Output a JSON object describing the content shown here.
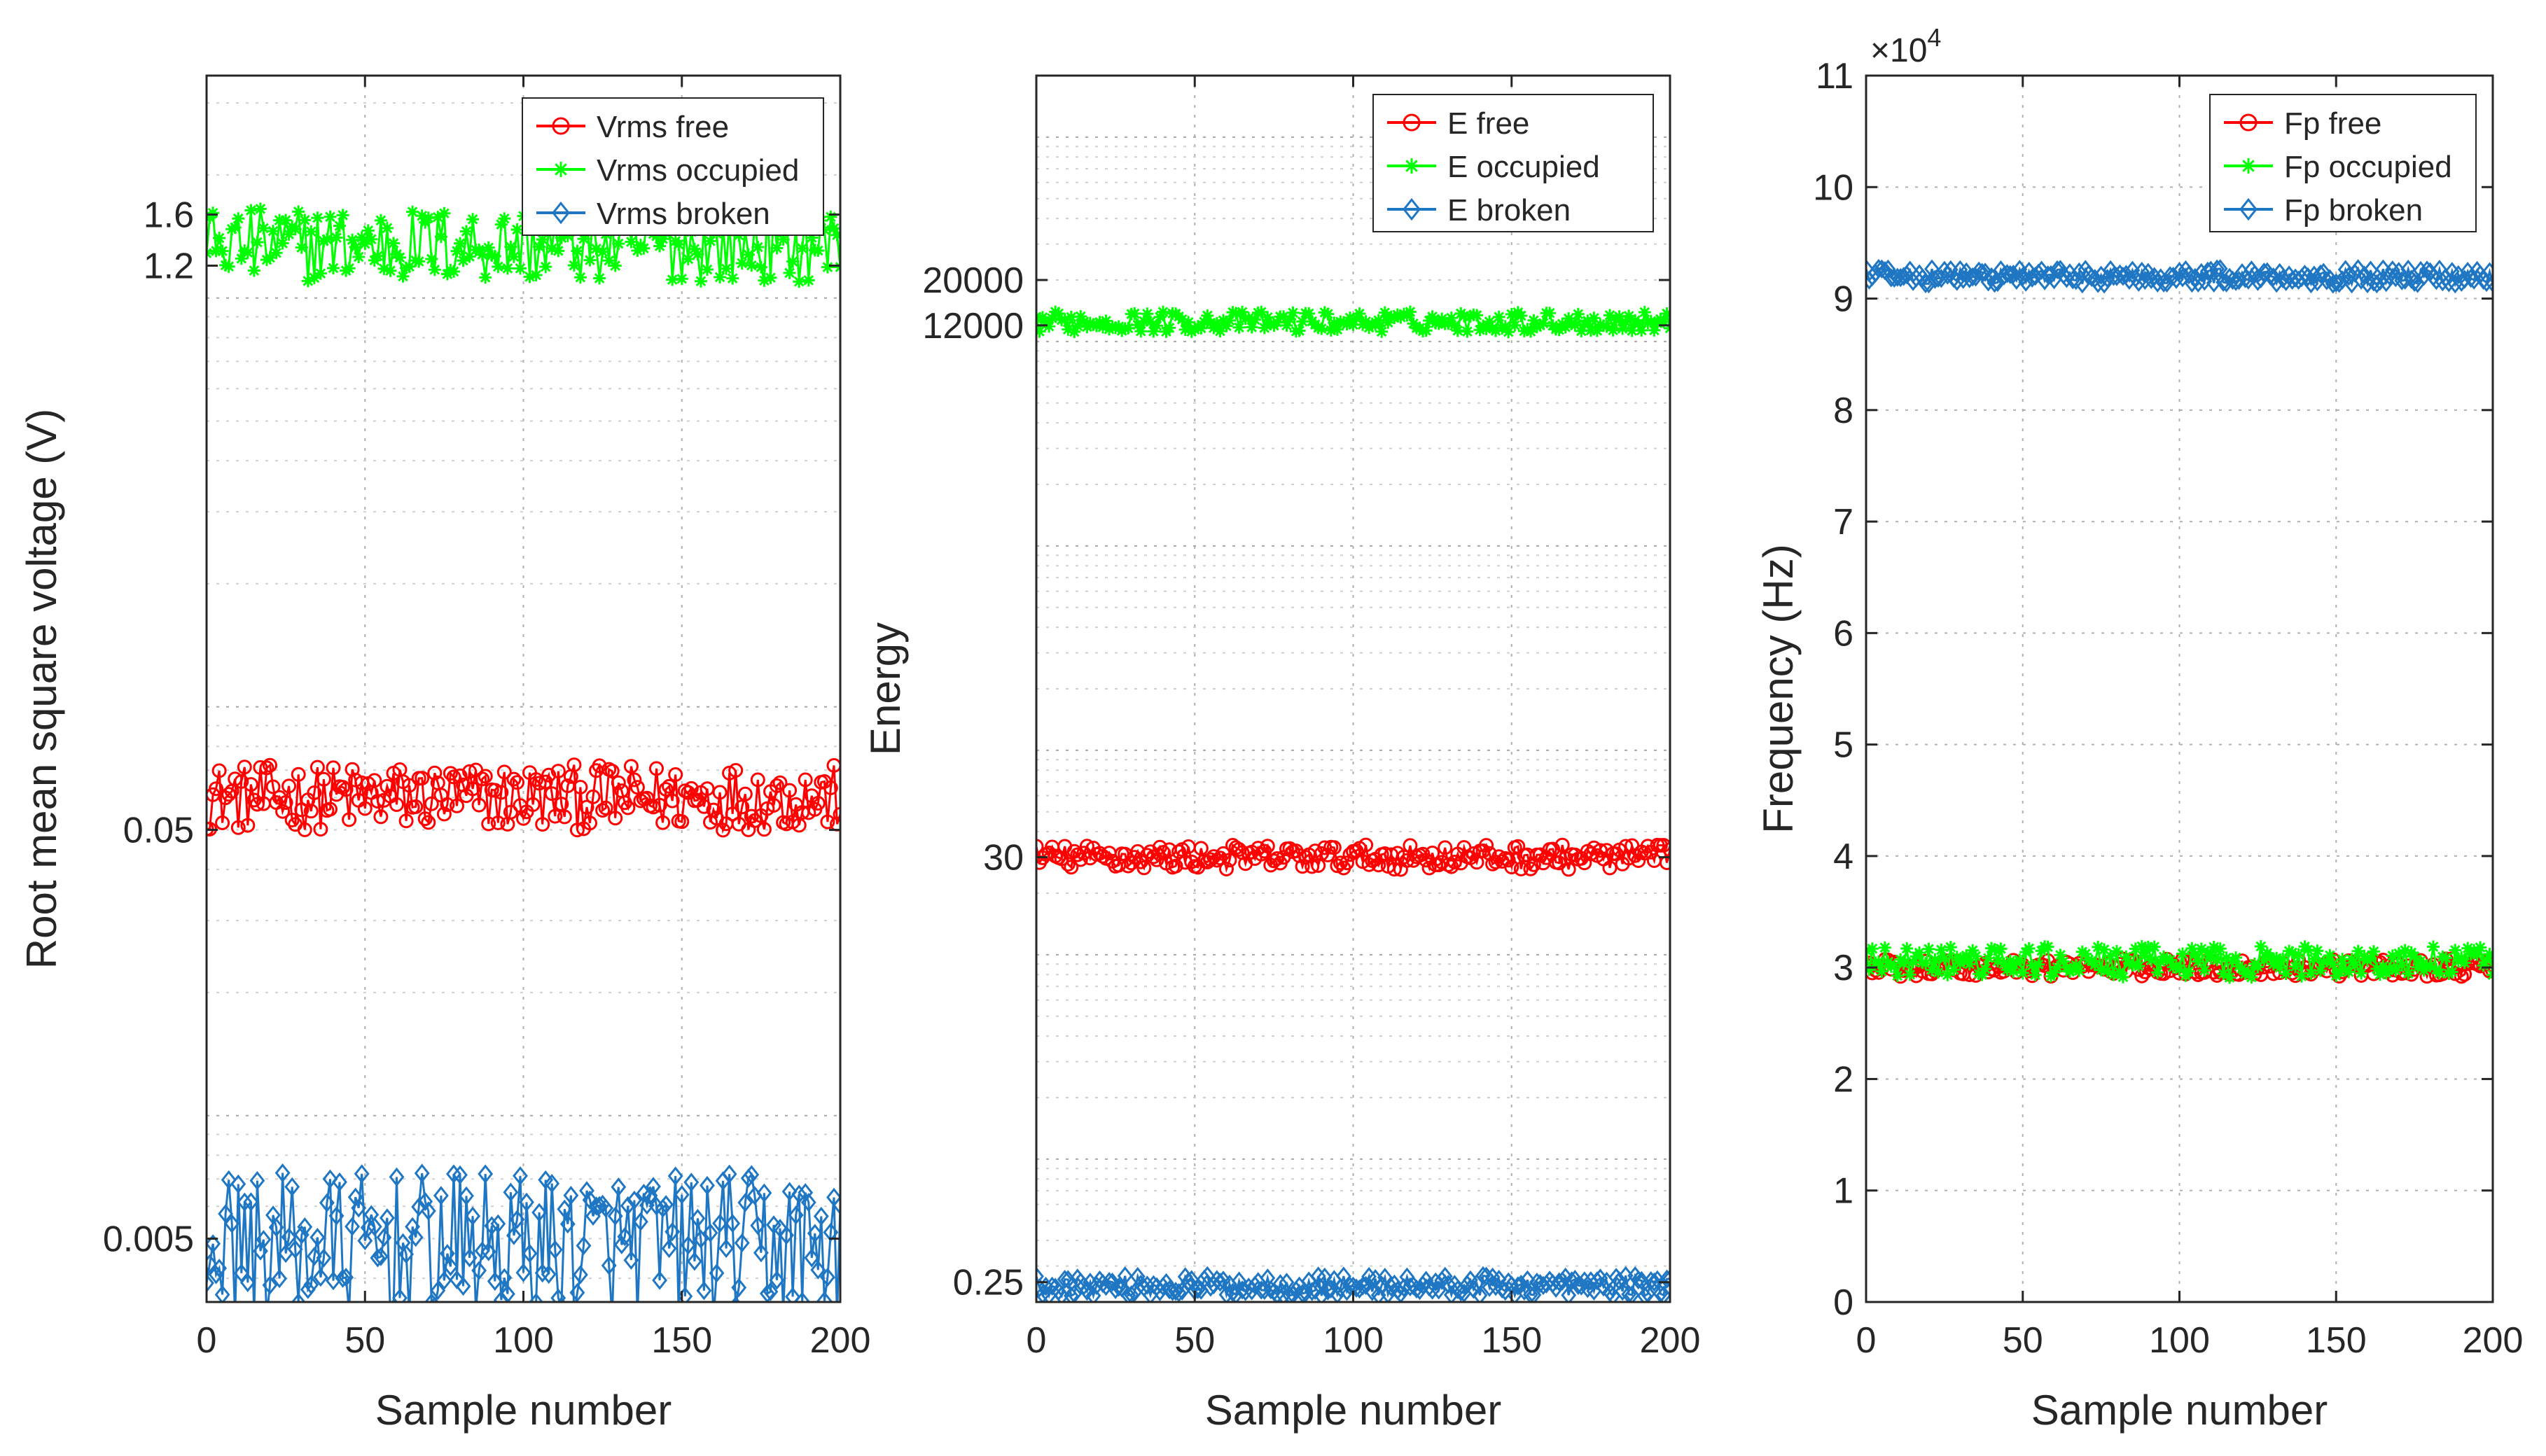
{
  "chart_data": [
    {
      "type": "scatter",
      "xlabel": "Sample number",
      "ylabel": "Root mean square voltage (V)",
      "xlim": [
        0,
        200
      ],
      "ylim": [
        0.0035,
        3.5
      ],
      "yscale": "log",
      "x_ticks": [
        0,
        50,
        100,
        150,
        200
      ],
      "y_ticks": [
        0.005,
        0.05,
        1.2,
        1.6
      ],
      "y_tick_labels": [
        "0.005",
        "0.05",
        "1.2",
        "1.6"
      ],
      "grid": true,
      "legend": "top-right",
      "series": [
        {
          "name": "Vrms free",
          "color": "#ff0000",
          "marker": "circle",
          "center": 0.06,
          "spread": 0.08
        },
        {
          "name": "Vrms occupied",
          "color": "#00ff00",
          "marker": "asterisk",
          "center": 1.35,
          "spread": 0.09
        },
        {
          "name": "Vrms broken",
          "color": "#1f77c4",
          "marker": "diamond",
          "center": 0.0048,
          "spread": 0.18
        }
      ]
    },
    {
      "type": "scatter",
      "xlabel": "Sample number",
      "ylabel": "Energy",
      "xlim": [
        0,
        200
      ],
      "ylim": [
        0.2,
        200000
      ],
      "yscale": "log",
      "x_ticks": [
        0,
        50,
        100,
        150,
        200
      ],
      "y_ticks": [
        0.25,
        30,
        12000,
        20000
      ],
      "y_tick_labels": [
        "0.25",
        "30",
        "12000",
        "20000"
      ],
      "grid": true,
      "legend": "top-right",
      "series": [
        {
          "name": "E free",
          "color": "#ff0000",
          "marker": "circle",
          "center": 30,
          "spread": 0.06
        },
        {
          "name": "E occupied",
          "color": "#00ff00",
          "marker": "asterisk",
          "center": 12500,
          "spread": 0.05
        },
        {
          "name": "E broken",
          "color": "#1f77c4",
          "marker": "diamond",
          "center": 0.24,
          "spread": 0.05
        }
      ]
    },
    {
      "type": "scatter",
      "xlabel": "Sample number",
      "ylabel": "Frequency (Hz)",
      "xlim": [
        0,
        200
      ],
      "ylim": [
        0,
        110000
      ],
      "yscale": "linear",
      "x_ticks": [
        0,
        50,
        100,
        150,
        200
      ],
      "y_ticks": [
        0,
        10000,
        20000,
        30000,
        40000,
        50000,
        60000,
        70000,
        80000,
        90000,
        100000,
        110000
      ],
      "y_tick_labels": [
        "0",
        "1",
        "2",
        "3",
        "4",
        "5",
        "6",
        "7",
        "8",
        "9",
        "10",
        "11"
      ],
      "y_exponent": {
        "base": "×10",
        "power": "4"
      },
      "grid": true,
      "legend": "top-right",
      "series": [
        {
          "name": "Fp free",
          "color": "#ff0000",
          "marker": "circle",
          "center": 30000,
          "spread": 800
        },
        {
          "name": "Fp occupied",
          "color": "#00ff00",
          "marker": "asterisk",
          "center": 30500,
          "spread": 1400
        },
        {
          "name": "Fp broken",
          "color": "#1f77c4",
          "marker": "diamond",
          "center": 92000,
          "spread": 700
        }
      ]
    }
  ]
}
